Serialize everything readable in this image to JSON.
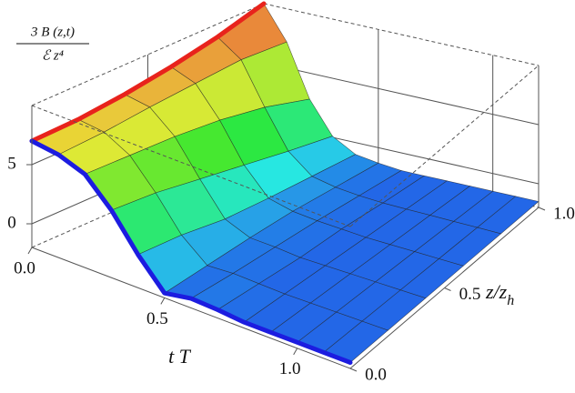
{
  "chart_data": {
    "type": "surface",
    "xlabel": "t T",
    "ylabel": {
      "main": "z/z",
      "sub": "h"
    },
    "zlabel": {
      "numerator": "3 B (z,t)",
      "denominator": "ℰ z⁴"
    },
    "x": [
      0,
      0.1,
      0.2,
      0.3,
      0.4,
      0.5,
      0.6,
      0.7,
      0.8,
      0.9,
      1.0,
      1.1,
      1.2
    ],
    "y": [
      0,
      0.2,
      0.4,
      0.6,
      0.8,
      1.0
    ],
    "values": [
      [
        7,
        6.7,
        5.9,
        3.7,
        0.8,
        -1.6,
        -1.2,
        -1.3,
        -1.5,
        -1.5,
        -1.5,
        -1.5,
        -1.5
      ],
      [
        7.1,
        6.8,
        5.6,
        3.2,
        0.4,
        -1.4,
        -1.3,
        -1.4,
        -1.5,
        -1.5,
        -1.5,
        -1.5,
        -1.5
      ],
      [
        7.5,
        7.1,
        5.3,
        2.4,
        -0.3,
        -1.2,
        -1.3,
        -1.5,
        -1.5,
        -1.5,
        -1.5,
        -1.5,
        -1.5
      ],
      [
        8.1,
        7.3,
        4.8,
        1.6,
        -0.6,
        -1.1,
        -1.3,
        -1.4,
        -1.5,
        -1.5,
        -1.5,
        -1.5,
        -1.5
      ],
      [
        8.9,
        7.5,
        4.0,
        0.8,
        -0.8,
        -1.2,
        -1.4,
        -1.5,
        -1.5,
        -1.5,
        -1.5,
        -1.5,
        -1.5
      ],
      [
        10,
        7.2,
        2.8,
        0.1,
        -1.0,
        -1.3,
        -1.5,
        -1.5,
        -1.5,
        -1.5,
        -1.5,
        -1.5,
        -1.5
      ]
    ],
    "xlim": [
      0,
      1.2
    ],
    "ylim": [
      0,
      1.0
    ],
    "zlim": [
      -2,
      10
    ],
    "xticks": [
      {
        "value": 0,
        "label": "0.0"
      },
      {
        "value": 0.5,
        "label": "0.5"
      },
      {
        "value": 1.0,
        "label": "1.0"
      }
    ],
    "yticks": [
      {
        "value": 0,
        "label": "0.0"
      },
      {
        "value": 0.5,
        "label": "0.5"
      },
      {
        "value": 1.0,
        "label": "1.0"
      }
    ],
    "zticks": [
      0,
      5
    ],
    "edge_colors": {
      "t_start": "#e8231c",
      "z_start": "#1c1ce0"
    }
  }
}
